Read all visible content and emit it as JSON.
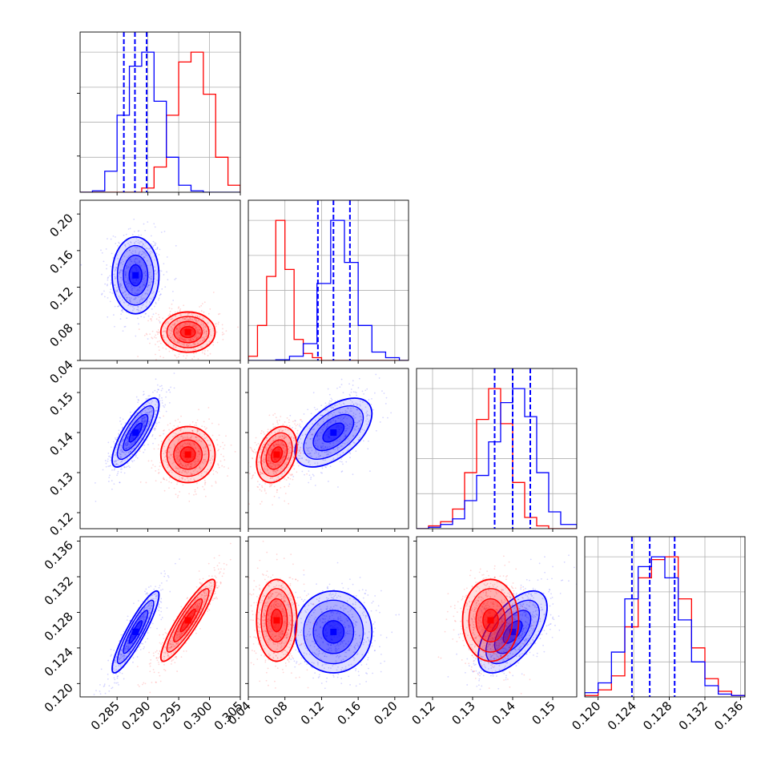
{
  "figure": {
    "type": "corner",
    "n_params": 4,
    "grid": true,
    "colors": {
      "series_a": "#0000ff",
      "series_b": "#ff0000"
    }
  },
  "chart_data": {
    "type": "corner",
    "parameters": [
      {
        "range": [
          0.279,
          0.305
        ],
        "ticks": [
          0.285,
          0.29,
          0.295,
          0.3,
          0.305
        ],
        "tick_labels": [
          "0.285",
          "0.290",
          "0.295",
          "0.300",
          "0.305"
        ]
      },
      {
        "range": [
          0.04,
          0.215
        ],
        "ticks": [
          0.04,
          0.08,
          0.12,
          0.16,
          0.2
        ],
        "tick_labels": [
          "0.04",
          "0.08",
          "0.12",
          "0.16",
          "0.20"
        ]
      },
      {
        "range": [
          0.116,
          0.156
        ],
        "ticks": [
          0.12,
          0.13,
          0.14,
          0.15
        ],
        "tick_labels": [
          "0.12",
          "0.13",
          "0.14",
          "0.15"
        ]
      },
      {
        "range": [
          0.1185,
          0.1365
        ],
        "ticks": [
          0.12,
          0.124,
          0.128,
          0.132,
          0.136
        ],
        "tick_labels": [
          "0.120",
          "0.124",
          "0.128",
          "0.132",
          "0.136"
        ]
      }
    ],
    "series": [
      {
        "color": "#0000ff",
        "mean": [
          0.288,
          0.133,
          0.14,
          0.1258
        ],
        "std": [
          0.0019,
          0.021,
          0.0043,
          0.0023
        ],
        "corr": [
          [
            1,
            0,
            0.8,
            0.9
          ],
          [
            0,
            1,
            0.55,
            0
          ],
          [
            0.8,
            0.55,
            1,
            0.6
          ],
          [
            0.9,
            0,
            0.6,
            1
          ]
        ],
        "quantiles": [
          [
            0.2861,
            0.2879,
            0.2898
          ],
          [
            0.116,
            0.133,
            0.151
          ],
          [
            0.1355,
            0.14,
            0.1444
          ],
          [
            0.1238,
            0.1258,
            0.1286
          ]
        ],
        "histograms": [
          {
            "bins": [
              0.279,
              0.281,
              0.283,
              0.285,
              0.287,
              0.289,
              0.291,
              0.293,
              0.295,
              0.297,
              0.299,
              0.301,
              0.303,
              0.305
            ],
            "values": [
              0,
              0.01,
              0.15,
              0.55,
              0.9,
              1.0,
              0.65,
              0.25,
              0.05,
              0.01,
              0,
              0,
              0
            ]
          },
          {
            "bins": [
              0.04,
              0.055,
              0.07,
              0.085,
              0.1,
              0.115,
              0.13,
              0.145,
              0.16,
              0.175,
              0.19,
              0.205,
              0.215
            ],
            "values": [
              0,
              0,
              0.005,
              0.03,
              0.12,
              0.55,
              1.0,
              0.7,
              0.25,
              0.06,
              0.02,
              0.0
            ]
          },
          {
            "bins": [
              0.116,
              0.119,
              0.122,
              0.125,
              0.128,
              0.131,
              0.134,
              0.137,
              0.14,
              0.143,
              0.146,
              0.149,
              0.152,
              0.156
            ],
            "values": [
              0,
              0.01,
              0.03,
              0.07,
              0.2,
              0.38,
              0.62,
              0.9,
              1.0,
              0.8,
              0.4,
              0.12,
              0.03
            ]
          },
          {
            "bins": [
              0.1185,
              0.12,
              0.1215,
              0.123,
              0.1245,
              0.126,
              0.1275,
              0.129,
              0.1305,
              0.132,
              0.1335,
              0.135,
              0.1365
            ],
            "values": [
              0.03,
              0.1,
              0.32,
              0.7,
              0.93,
              1.0,
              0.85,
              0.55,
              0.25,
              0.08,
              0.02,
              0.01
            ]
          }
        ]
      },
      {
        "color": "#ff0000",
        "mean": [
          0.2965,
          0.071,
          0.1345,
          0.1271
        ],
        "std": [
          0.0022,
          0.011,
          0.0035,
          0.0023
        ],
        "corr": [
          [
            1,
            0,
            0,
            0.9
          ],
          [
            0,
            1,
            0.3,
            0
          ],
          [
            0,
            0.3,
            1,
            0
          ],
          [
            0.9,
            0,
            0,
            1
          ]
        ],
        "quantiles": [],
        "histograms": [
          {
            "bins": [
              0.279,
              0.281,
              0.283,
              0.285,
              0.287,
              0.289,
              0.291,
              0.293,
              0.295,
              0.297,
              0.299,
              0.301,
              0.303,
              0.305
            ],
            "values": [
              0,
              0,
              0,
              0,
              0,
              0.03,
              0.18,
              0.55,
              0.93,
              1.0,
              0.7,
              0.25,
              0.05
            ]
          },
          {
            "bins": [
              0.04,
              0.05,
              0.06,
              0.07,
              0.08,
              0.09,
              0.1,
              0.11,
              0.12,
              0.13,
              0.215
            ],
            "values": [
              0.03,
              0.25,
              0.6,
              1.0,
              0.65,
              0.15,
              0.05,
              0.02,
              0.0,
              0.0
            ]
          },
          {
            "bins": [
              0.116,
              0.119,
              0.122,
              0.125,
              0.128,
              0.131,
              0.134,
              0.137,
              0.14,
              0.143,
              0.146,
              0.149,
              0.152,
              0.156
            ],
            "values": [
              0,
              0.02,
              0.05,
              0.14,
              0.4,
              0.78,
              1.0,
              0.75,
              0.33,
              0.08,
              0.02,
              0,
              0
            ]
          },
          {
            "bins": [
              0.1185,
              0.12,
              0.1215,
              0.123,
              0.1245,
              0.126,
              0.1275,
              0.129,
              0.1305,
              0.132,
              0.1335,
              0.135,
              0.1365
            ],
            "values": [
              0.01,
              0.05,
              0.15,
              0.5,
              0.85,
              0.98,
              1.0,
              0.7,
              0.35,
              0.13,
              0.04,
              0.01
            ]
          }
        ]
      }
    ]
  }
}
